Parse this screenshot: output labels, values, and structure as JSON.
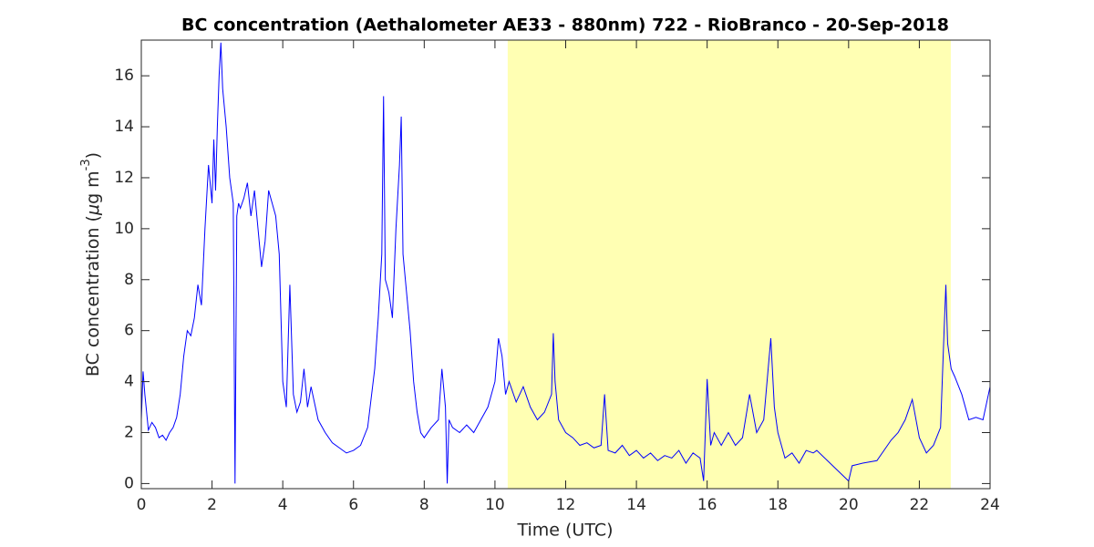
{
  "chart_data": {
    "type": "line",
    "title": "BC concentration (Aethalometer AE33 - 880nm) 722 - RioBranco - 20-Sep-2018",
    "xlabel": "Time (UTC)",
    "ylabel": {
      "text": "BC concentration (",
      "mu": "μ",
      "mid": "g m",
      "sup": "-3",
      "end": ")"
    },
    "xlim": [
      0,
      24
    ],
    "ylim": [
      -0.2,
      17.4
    ],
    "xticks": [
      0,
      2,
      4,
      6,
      8,
      10,
      12,
      14,
      16,
      18,
      20,
      22,
      24
    ],
    "yticks": [
      0,
      2,
      4,
      6,
      8,
      10,
      12,
      14,
      16
    ],
    "shade": [
      10.36,
      22.89
    ],
    "shade_color": "#ffffb3",
    "series": [
      {
        "color": "#0000ff",
        "x": [
          0,
          0.05,
          0.1,
          0.2,
          0.3,
          0.4,
          0.5,
          0.6,
          0.7,
          0.8,
          0.9,
          1.0,
          1.1,
          1.2,
          1.3,
          1.4,
          1.5,
          1.6,
          1.7,
          1.8,
          1.9,
          2.0,
          2.05,
          2.1,
          2.15,
          2.2,
          2.25,
          2.3,
          2.4,
          2.5,
          2.6,
          2.65,
          2.7,
          2.75,
          2.8,
          2.9,
          3.0,
          3.1,
          3.2,
          3.3,
          3.4,
          3.5,
          3.6,
          3.7,
          3.8,
          3.9,
          4.0,
          4.1,
          4.2,
          4.3,
          4.4,
          4.5,
          4.6,
          4.7,
          4.8,
          5.0,
          5.2,
          5.4,
          5.6,
          5.8,
          6.0,
          6.2,
          6.4,
          6.6,
          6.7,
          6.8,
          6.85,
          6.9,
          7.0,
          7.1,
          7.2,
          7.3,
          7.35,
          7.4,
          7.5,
          7.6,
          7.7,
          7.8,
          7.9,
          8.0,
          8.2,
          8.4,
          8.5,
          8.6,
          8.65,
          8.7,
          8.8,
          9.0,
          9.2,
          9.4,
          9.6,
          9.8,
          10.0,
          10.1,
          10.2,
          10.3,
          10.4,
          10.6,
          10.8,
          11.0,
          11.2,
          11.4,
          11.6,
          11.65,
          11.7,
          11.8,
          12.0,
          12.2,
          12.4,
          12.6,
          12.8,
          13.0,
          13.1,
          13.2,
          13.4,
          13.6,
          13.8,
          14.0,
          14.2,
          14.4,
          14.6,
          14.8,
          15.0,
          15.2,
          15.4,
          15.6,
          15.8,
          15.9,
          16.0,
          16.1,
          16.2,
          16.4,
          16.6,
          16.8,
          17.0,
          17.2,
          17.4,
          17.6,
          17.8,
          17.9,
          18.0,
          18.2,
          18.4,
          18.6,
          18.8,
          19.0,
          19.1,
          20.0,
          20.1,
          20.4,
          20.8,
          21.2,
          21.4,
          21.6,
          21.8,
          22.0,
          22.2,
          22.4,
          22.6,
          22.7,
          22.75,
          22.8,
          22.9,
          23.0,
          23.2,
          23.4,
          23.6,
          23.8,
          24.0
        ],
        "values": [
          2.5,
          4.4,
          3.5,
          2.1,
          2.4,
          2.2,
          1.8,
          1.9,
          1.7,
          2.0,
          2.2,
          2.6,
          3.5,
          5.0,
          6.0,
          5.8,
          6.5,
          7.8,
          7.0,
          10.0,
          12.5,
          11.0,
          13.5,
          11.5,
          14.0,
          16.0,
          17.3,
          15.5,
          14.0,
          12.0,
          11.0,
          0,
          10.5,
          11.0,
          10.8,
          11.2,
          11.8,
          10.5,
          11.5,
          10.0,
          8.5,
          9.5,
          11.5,
          11.0,
          10.5,
          9.0,
          4.0,
          3.0,
          7.8,
          3.5,
          2.8,
          3.2,
          4.5,
          3.0,
          3.8,
          2.5,
          2.0,
          1.6,
          1.4,
          1.2,
          1.3,
          1.5,
          2.2,
          4.5,
          6.5,
          9.0,
          15.2,
          8.0,
          7.5,
          6.5,
          10.0,
          12.5,
          14.4,
          9.0,
          7.5,
          6.0,
          4.0,
          2.8,
          2.0,
          1.8,
          2.2,
          2.5,
          4.5,
          3.0,
          0,
          2.5,
          2.2,
          2.0,
          2.3,
          2.0,
          2.5,
          3.0,
          4.0,
          5.7,
          5.0,
          3.5,
          4.0,
          3.2,
          3.8,
          3.0,
          2.5,
          2.8,
          3.5,
          5.9,
          4.0,
          2.5,
          2.0,
          1.8,
          1.5,
          1.6,
          1.4,
          1.5,
          3.5,
          1.3,
          1.2,
          1.5,
          1.1,
          1.3,
          1.0,
          1.2,
          0.9,
          1.1,
          1.0,
          1.3,
          0.8,
          1.2,
          1.0,
          0.1,
          4.1,
          1.5,
          2.0,
          1.5,
          2.0,
          1.5,
          1.8,
          3.5,
          2.0,
          2.5,
          5.7,
          3.0,
          2.0,
          1.0,
          1.2,
          0.8,
          1.3,
          1.2,
          1.3,
          0.1,
          0.7,
          0.8,
          0.9,
          1.7,
          2.0,
          2.5,
          3.3,
          1.8,
          1.2,
          1.5,
          2.2,
          6.0,
          7.8,
          5.5,
          4.5,
          4.2,
          3.5,
          2.5,
          2.6,
          2.5,
          3.8
        ]
      }
    ]
  }
}
